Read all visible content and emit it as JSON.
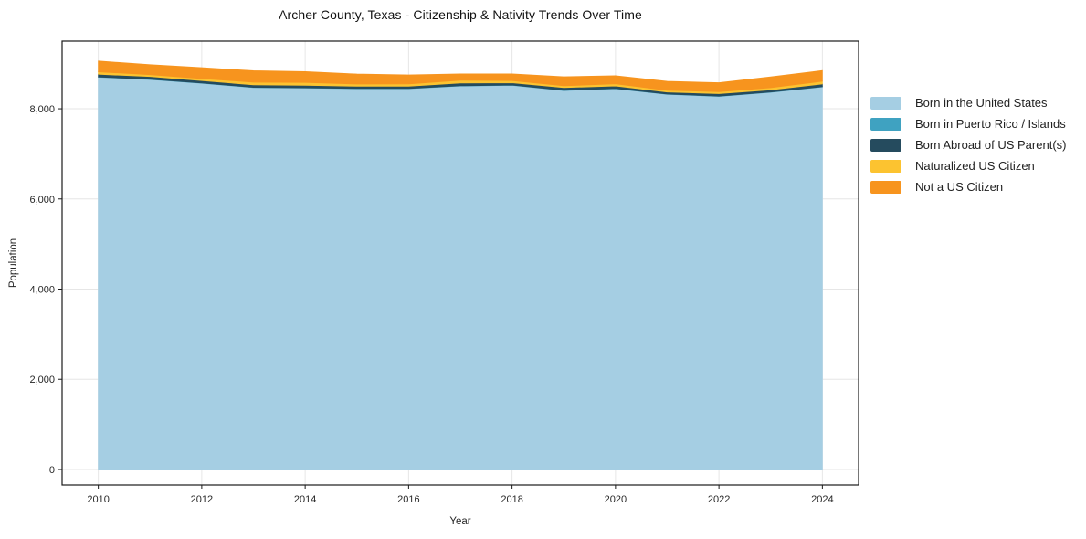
{
  "figure": {
    "title": "Archer County, Texas - Citizenship & Nativity Trends Over Time"
  },
  "chart_data": {
    "type": "area",
    "stacked": true,
    "title": "Archer County, Texas - Citizenship & Nativity Trends Over Time",
    "xlabel": "Year",
    "ylabel": "Population",
    "x": [
      2010,
      2011,
      2012,
      2013,
      2014,
      2015,
      2016,
      2017,
      2018,
      2019,
      2020,
      2021,
      2022,
      2023,
      2024
    ],
    "series": [
      {
        "name": "Born in the United States",
        "color": "#a5cee3",
        "values": [
          8700,
          8650,
          8565,
          8470,
          8460,
          8445,
          8445,
          8505,
          8520,
          8405,
          8445,
          8320,
          8275,
          8365,
          8485
        ]
      },
      {
        "name": "Born in Puerto Rico / Islands",
        "color": "#3fa2c1",
        "values": [
          5,
          5,
          5,
          5,
          5,
          5,
          5,
          5,
          5,
          5,
          5,
          5,
          5,
          5,
          5
        ]
      },
      {
        "name": "Born Abroad of US Parent(s)",
        "color": "#254b5e",
        "values": [
          60,
          60,
          55,
          55,
          55,
          50,
          50,
          60,
          50,
          60,
          55,
          45,
          55,
          50,
          60
        ]
      },
      {
        "name": "Naturalized US Citizen",
        "color": "#fcc330",
        "values": [
          55,
          42,
          46,
          60,
          65,
          48,
          50,
          62,
          50,
          40,
          48,
          40,
          45,
          48,
          60
        ]
      },
      {
        "name": "Not a US Citizen",
        "color": "#f7941e",
        "values": [
          238,
          222,
          240,
          253,
          238,
          222,
          200,
          140,
          147,
          200,
          178,
          197,
          198,
          238,
          238
        ]
      }
    ],
    "xticks": {
      "values": [
        2010,
        2012,
        2014,
        2016,
        2018,
        2020,
        2022,
        2024
      ],
      "labels": [
        "2010",
        "2012",
        "2014",
        "2016",
        "2018",
        "2020",
        "2022",
        "2024"
      ]
    },
    "yticks": {
      "values": [
        0,
        2000,
        4000,
        6000,
        8000
      ],
      "labels": [
        "0",
        "2,000",
        "4,000",
        "6,000",
        "8,000"
      ]
    },
    "xlim": [
      2009.3,
      2024.7
    ],
    "ylim": [
      -345,
      9500
    ],
    "grid": true,
    "legend_position": "right"
  }
}
